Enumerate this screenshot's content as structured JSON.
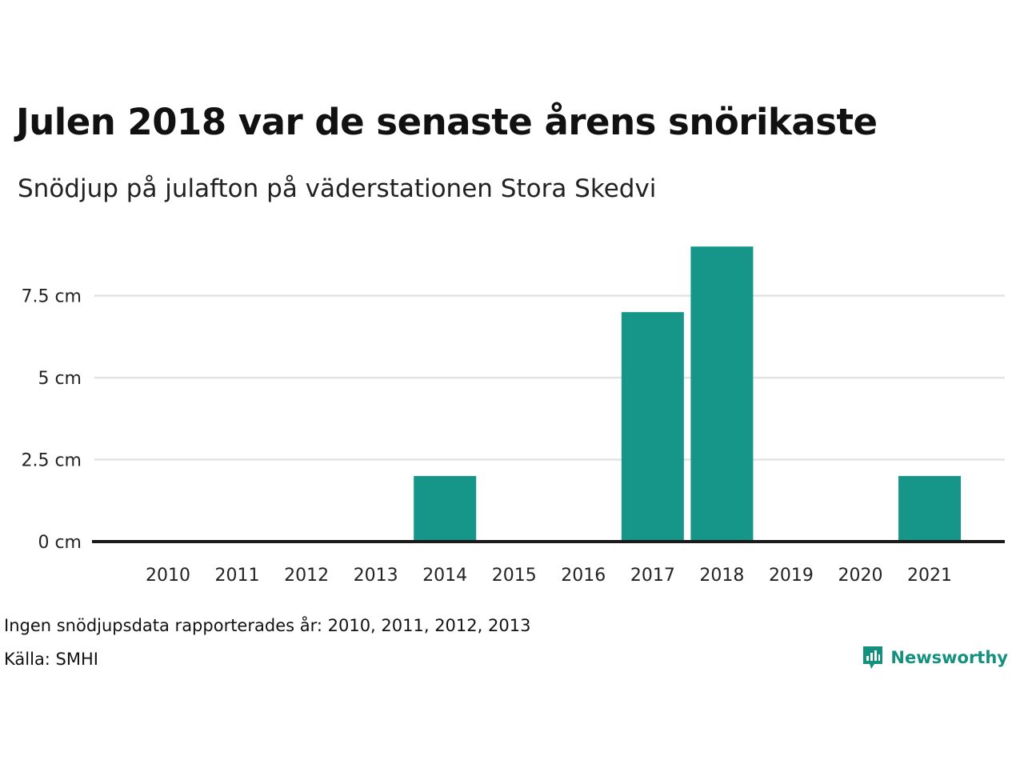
{
  "title": "Julen 2018 var de senaste årens snörikaste",
  "subtitle": "Snödjup på julafton på väderstationen Stora Skedvi",
  "note": "Ingen snödjupsdata rapporterades år: 2010, 2011, 2012, 2013",
  "source": "Källa: SMHI",
  "brand": {
    "name": "Newsworthy",
    "icon": "newsworthy-logo-icon"
  },
  "colors": {
    "bar": "#159688",
    "grid": "#e3e3e3",
    "axis": "#1a1a1a",
    "brand": "#14907f"
  },
  "chart_data": {
    "type": "bar",
    "categories": [
      "2010",
      "2011",
      "2012",
      "2013",
      "2014",
      "2015",
      "2016",
      "2017",
      "2018",
      "2019",
      "2020",
      "2021"
    ],
    "values": [
      null,
      null,
      null,
      null,
      2,
      0,
      0,
      7,
      9,
      0,
      0,
      2
    ],
    "yticks": [
      0,
      2.5,
      5,
      7.5
    ],
    "ytick_labels": [
      "0 cm",
      "2.5 cm",
      "5 cm",
      "7.5 cm"
    ],
    "ylim": [
      0,
      9.2
    ],
    "grid": true,
    "legend": "none"
  }
}
